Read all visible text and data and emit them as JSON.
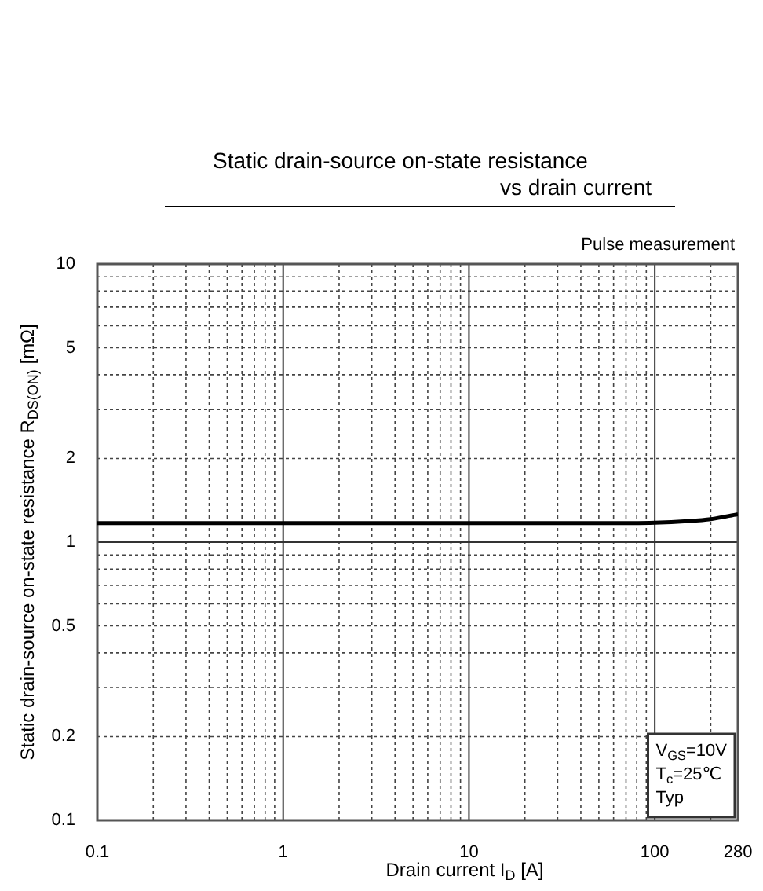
{
  "chart_data": {
    "type": "line",
    "title": "Static drain-source on-state resistance\nvs drain current",
    "xlabel": "Drain current I$_{D}$ [A]",
    "ylabel": "Static drain-source on-state resistance R$_{DS(ON)}$ [mΩ]",
    "annotations": [
      "Pulse measurement",
      "V$_{GS}$=10V\nT$_{c}$=25℃\nTyp"
    ],
    "x": [
      0.1,
      1,
      10,
      50,
      100,
      150,
      200,
      280
    ],
    "series": [
      {
        "color": "#000000",
        "values": [
          1.17,
          1.17,
          1.17,
          1.17,
          1.175,
          1.19,
          1.21,
          1.26
        ]
      }
    ],
    "log": "xy",
    "grid": true,
    "legend": false,
    "marker": "none",
    "line_style": "solid",
    "xlim": [
      0.1,
      280
    ],
    "ylim": [
      0.1,
      10
    ],
    "xticks": [
      0.1,
      {
        "value": 0.2,
        "label": null
      },
      {
        "value": 0.3,
        "label": null
      },
      {
        "value": 0.4,
        "label": null
      },
      {
        "value": 0.5,
        "label": null
      },
      {
        "value": 0.6,
        "label": null
      },
      {
        "value": 0.7,
        "label": null
      },
      {
        "value": 0.8,
        "label": null
      },
      {
        "value": 0.9,
        "label": null
      },
      1,
      {
        "value": 2,
        "label": null
      },
      {
        "value": 3,
        "label": null
      },
      {
        "value": 4,
        "label": null
      },
      {
        "value": 5,
        "label": null
      },
      {
        "value": 6,
        "label": null
      },
      {
        "value": 7,
        "label": null
      },
      {
        "value": 8,
        "label": null
      },
      {
        "value": 9,
        "label": null
      },
      10,
      {
        "value": 20,
        "label": null
      },
      {
        "value": 30,
        "label": null
      },
      {
        "value": 40,
        "label": null
      },
      {
        "value": 50,
        "label": null
      },
      {
        "value": 60,
        "label": null
      },
      {
        "value": 70,
        "label": null
      },
      {
        "value": 80,
        "label": null
      },
      {
        "value": 90,
        "label": null
      },
      100,
      {
        "value": 200,
        "label": null
      },
      280
    ],
    "yticks": [
      0.1,
      0.2,
      {
        "value": 0.3,
        "label": null
      },
      {
        "value": 0.4,
        "label": null
      },
      0.5,
      {
        "value": 0.6,
        "label": null
      },
      {
        "value": 0.7,
        "label": null
      },
      {
        "value": 0.8,
        "label": null
      },
      {
        "value": 0.9,
        "label": null
      },
      1,
      2,
      {
        "value": 3,
        "label": null
      },
      {
        "value": 4,
        "label": null
      },
      5,
      {
        "value": 6,
        "label": null
      },
      {
        "value": 7,
        "label": null
      },
      {
        "value": 8,
        "label": null
      },
      {
        "value": 9,
        "label": null
      },
      10
    ]
  }
}
